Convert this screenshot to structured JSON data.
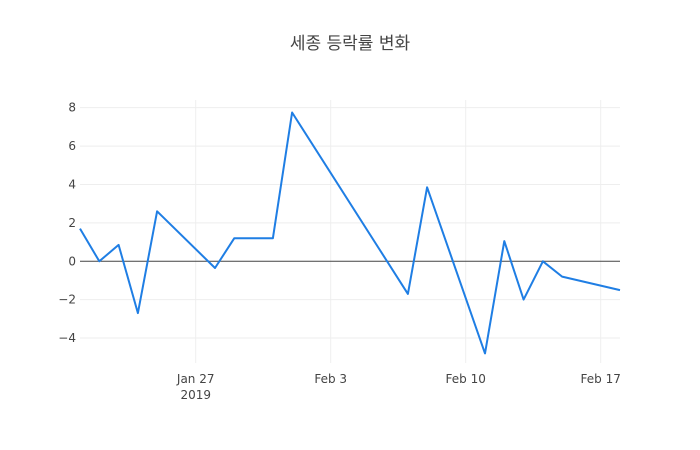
{
  "chart_data": {
    "type": "line",
    "title": "세종 등락률 변화",
    "xlabel": "",
    "ylabel": "",
    "x": [
      "2019-01-21",
      "2019-01-22",
      "2019-01-23",
      "2019-01-24",
      "2019-01-25",
      "2019-01-28",
      "2019-01-29",
      "2019-01-31",
      "2019-02-01",
      "2019-02-07",
      "2019-02-08",
      "2019-02-11",
      "2019-02-12",
      "2019-02-13",
      "2019-02-14",
      "2019-02-15",
      "2019-02-18"
    ],
    "series": [
      {
        "name": "",
        "color": "#1f7ee4",
        "values": [
          1.7,
          0.0,
          0.85,
          -2.7,
          2.6,
          -0.35,
          1.2,
          1.2,
          7.75,
          -1.7,
          3.85,
          -4.8,
          1.05,
          -2.0,
          0.0,
          -0.8,
          -1.5
        ]
      }
    ],
    "xlim": [
      "2019-01-21",
      "2019-02-18"
    ],
    "ylim": [
      -5.3,
      8.4
    ],
    "y_ticks": [
      8,
      6,
      4,
      2,
      0,
      -2,
      -4
    ],
    "y_tick_labels": [
      "8",
      "6",
      "4",
      "2",
      "0",
      "−2",
      "−4"
    ],
    "x_ticks": [
      {
        "date": "2019-01-27",
        "label": "Jan 27",
        "sublabel": "2019"
      },
      {
        "date": "2019-02-03",
        "label": "Feb 3",
        "sublabel": ""
      },
      {
        "date": "2019-02-10",
        "label": "Feb 10",
        "sublabel": ""
      },
      {
        "date": "2019-02-17",
        "label": "Feb 17",
        "sublabel": ""
      }
    ],
    "grid": true,
    "zero_line": true,
    "legend": "none"
  }
}
